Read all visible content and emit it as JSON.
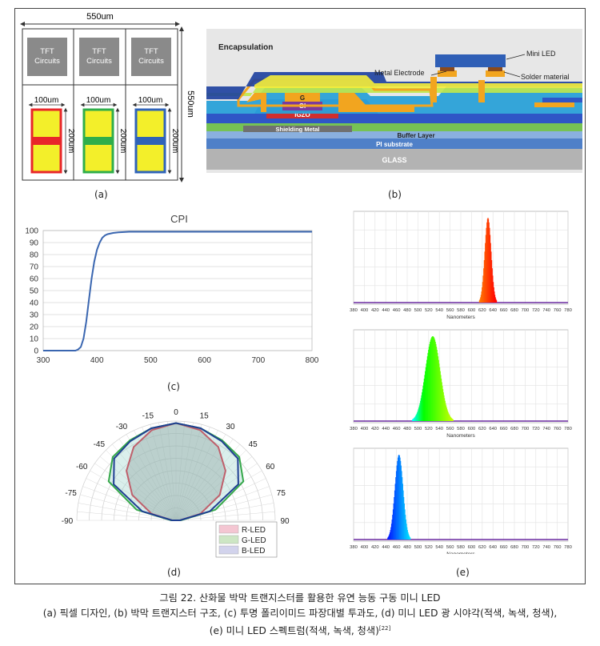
{
  "panel_labels": {
    "a": "(a)",
    "b": "(b)",
    "c": "(c)",
    "d": "(d)",
    "e": "(e)"
  },
  "panel_a": {
    "width_dim": "550um",
    "height_dim": "550um",
    "tft_label_line1": "TFT",
    "tft_label_line2": "Circuits",
    "subpixel_width": "100um",
    "subpixel_height": "200um",
    "subpixel_colors": [
      "#e8262a",
      "#2fae4a",
      "#2f63b8"
    ]
  },
  "panel_b": {
    "encapsulation": "Encapsulation",
    "mini_led": "Mini LED",
    "metal_electrode": "Metal Electrode",
    "solder_material": "Solder material",
    "g": "G",
    "gi": "GI",
    "igzo": "IGZO",
    "shielding_metal": "Shielding Metal",
    "buffer_layer": "Buffer Layer",
    "pi_substrate": "PI substrate",
    "glass": "GLASS"
  },
  "chart_data": [
    {
      "type": "line",
      "title": "CPI",
      "xlabel": "",
      "ylabel": "",
      "x_ticks": [
        "300",
        "400",
        "500",
        "600",
        "700",
        "800"
      ],
      "y_ticks": [
        "0",
        "10",
        "20",
        "30",
        "40",
        "50",
        "60",
        "70",
        "80",
        "90",
        "100"
      ],
      "xlim": [
        300,
        800
      ],
      "ylim": [
        0,
        100
      ],
      "grid": true,
      "series": [
        {
          "color": "#3a66b0",
          "x": [
            300,
            360,
            365,
            370,
            375,
            380,
            385,
            390,
            395,
            400,
            405,
            410,
            415,
            420,
            430,
            440,
            460,
            500,
            600,
            700,
            800
          ],
          "y": [
            0,
            0,
            1,
            3,
            10,
            24,
            42,
            60,
            74,
            84,
            90,
            94,
            96,
            97,
            98,
            98.5,
            99,
            99,
            99,
            99,
            99
          ]
        }
      ]
    },
    {
      "type": "polar",
      "theta_ticks": [
        "-90",
        "-75",
        "-60",
        "-45",
        "-30",
        "-15",
        "0",
        "15",
        "30",
        "45",
        "60",
        "75",
        "90"
      ],
      "legend": [
        "R-LED",
        "G-LED",
        "B-LED"
      ],
      "legend_colors": [
        "#f4c6d2",
        "#cde6c4",
        "#d2d3ec"
      ],
      "legend_placement": "bottom-right",
      "series": [
        {
          "name": "R-LED",
          "color": "#d6223a",
          "angles": [
            -90,
            -75,
            -60,
            -45,
            -30,
            -15,
            0,
            15,
            30,
            45,
            60,
            75,
            90
          ],
          "radii": [
            0.04,
            0.26,
            0.52,
            0.72,
            0.87,
            0.96,
            1.0,
            0.96,
            0.87,
            0.72,
            0.52,
            0.26,
            0.04
          ]
        },
        {
          "name": "G-LED",
          "color": "#36a84a",
          "angles": [
            -90,
            -75,
            -60,
            -45,
            -30,
            -15,
            0,
            15,
            30,
            45,
            60,
            75,
            90
          ],
          "radii": [
            0.05,
            0.42,
            0.8,
            0.92,
            0.95,
            0.98,
            1.0,
            0.98,
            0.95,
            0.92,
            0.8,
            0.42,
            0.05
          ]
        },
        {
          "name": "B-LED",
          "color": "#1f3f92",
          "angles": [
            -90,
            -75,
            -60,
            -45,
            -30,
            -15,
            0,
            15,
            30,
            45,
            60,
            75,
            90
          ],
          "radii": [
            0.04,
            0.36,
            0.74,
            0.9,
            0.94,
            0.98,
            1.0,
            0.98,
            0.94,
            0.9,
            0.74,
            0.36,
            0.04
          ]
        }
      ]
    },
    {
      "type": "area",
      "xlabel": "Nanometers",
      "x_ticks": [
        "380",
        "400",
        "420",
        "440",
        "460",
        "480",
        "500",
        "520",
        "540",
        "560",
        "580",
        "600",
        "620",
        "640",
        "660",
        "680",
        "700",
        "720",
        "740",
        "760",
        "780"
      ],
      "xlim": [
        380,
        780
      ],
      "grid": true,
      "peaks": [
        {
          "name": "red",
          "peak_nm": 630,
          "fwhm_nm": 14
        },
        {
          "name": "green",
          "peak_nm": 527,
          "fwhm_nm": 32
        },
        {
          "name": "blue",
          "peak_nm": 464,
          "fwhm_nm": 18
        }
      ]
    }
  ],
  "caption": {
    "line1": "그림 22. 산화물 박막 트랜지스터를 활용한 유연 능동 구동 미니 LED",
    "line2": "(a) 픽셀 디자인, (b) 박막 트랜지스터 구조, (c) 투명 폴리이미드 파장대별 투과도, (d) 미니 LED 광 시야각(적색, 녹색, 청색),",
    "line3": "(e) 미니 LED 스펙트럼(적색, 녹색, 청색)",
    "ref": "[22]"
  }
}
